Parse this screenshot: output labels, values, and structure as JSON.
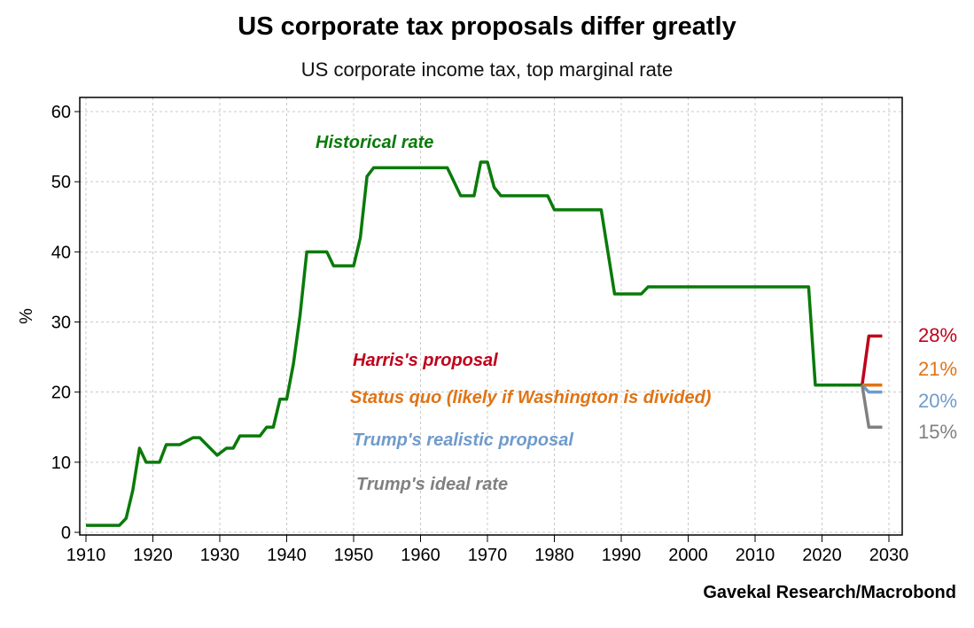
{
  "chart_data": {
    "type": "line",
    "title": "US corporate tax proposals differ greatly",
    "subtitle": "US corporate income tax, top marginal rate",
    "xlabel": "",
    "ylabel": "%",
    "xlim": [
      1909,
      2031
    ],
    "ylim": [
      0,
      62
    ],
    "xticks": [
      1910,
      1920,
      1930,
      1940,
      1950,
      1960,
      1970,
      1980,
      1990,
      2000,
      2010,
      2020,
      2030
    ],
    "yticks": [
      0,
      10,
      20,
      30,
      40,
      50,
      60
    ],
    "grid": true,
    "source": "Gavekal Research/Macrobond",
    "series": [
      {
        "name": "Historical rate",
        "color": "#0a7a0a",
        "x": [
          1910,
          1915,
          1916,
          1917,
          1918,
          1919,
          1921,
          1922,
          1924,
          1926,
          1927,
          1929.6,
          1931,
          1932,
          1933,
          1936,
          1937,
          1938,
          1939,
          1940,
          1941,
          1942,
          1943,
          1946,
          1947,
          1950,
          1951,
          1952,
          1953,
          1964,
          1965,
          1966,
          1968,
          1969,
          1970,
          1971,
          1972,
          1979,
          1980,
          1987,
          1988,
          1989,
          1993,
          1994,
          2018,
          2019,
          2026
        ],
        "y": [
          1,
          1,
          2,
          6,
          12,
          10,
          10,
          12.5,
          12.5,
          13.5,
          13.5,
          11,
          12,
          12,
          13.75,
          13.75,
          15,
          15,
          19,
          19,
          24,
          31,
          40,
          40,
          38,
          38,
          42,
          50.75,
          52,
          52,
          50,
          48,
          48,
          52.8,
          52.8,
          49.2,
          48,
          48,
          46,
          46,
          40,
          34,
          34,
          35,
          35,
          21,
          21
        ]
      },
      {
        "name": "Harris's proposal",
        "color": "#c0001a",
        "end_label": "28%",
        "x": [
          2026,
          2027,
          2029
        ],
        "y": [
          21,
          28,
          28
        ]
      },
      {
        "name": "Status quo (likely if Washington is divided)",
        "color": "#e07314",
        "end_label": "21%",
        "x": [
          2026,
          2029
        ],
        "y": [
          21,
          21
        ]
      },
      {
        "name": "Trump's realistic proposal",
        "color": "#6f9bcb",
        "end_label": "20%",
        "x": [
          2026,
          2027,
          2029
        ],
        "y": [
          21,
          20,
          20
        ]
      },
      {
        "name": "Trump's ideal rate",
        "color": "#808080",
        "end_label": "15%",
        "x": [
          2026,
          2027,
          2029
        ],
        "y": [
          21,
          15,
          15
        ]
      }
    ]
  }
}
